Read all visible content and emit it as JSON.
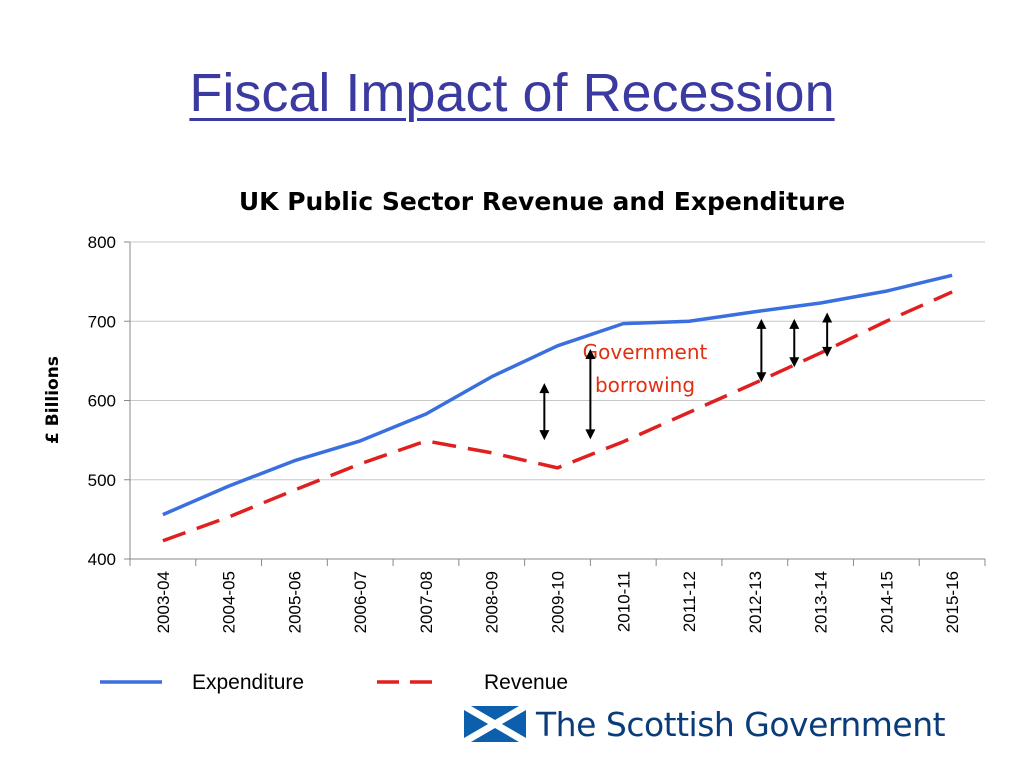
{
  "slide": {
    "title": "Fiscal Impact of Recession",
    "colors": {
      "title": "#3a3aa0",
      "logo": "#0b3c7a"
    }
  },
  "chart_data": {
    "type": "line",
    "title": "UK Public Sector Revenue and Expenditure",
    "xlabel": "",
    "ylabel": "£ Billions",
    "ylim": [
      400,
      800
    ],
    "yticks": [
      400,
      500,
      600,
      700,
      800
    ],
    "grid": true,
    "legend_position": "bottom-left",
    "categories": [
      "2003-04",
      "2004-05",
      "2005-06",
      "2006-07",
      "2007-08",
      "2008-09",
      "2009-10",
      "2010-11",
      "2011-12",
      "2012-13",
      "2013-14",
      "2014-15",
      "2015-16"
    ],
    "series": [
      {
        "name": "Expenditure",
        "color": "#3a6fe0",
        "style": "solid",
        "values": [
          456,
          492,
          524,
          549,
          583,
          630,
          669,
          697,
          700,
          712,
          723,
          738,
          758
        ]
      },
      {
        "name": "Revenue",
        "color": "#e02020",
        "style": "dashed",
        "values": [
          423,
          453,
          487,
          520,
          549,
          534,
          515,
          548,
          585,
          622,
          660,
          700,
          737
        ]
      }
    ],
    "annotation": {
      "lines": [
        "Government",
        "borrowing"
      ],
      "color": "#e03010",
      "arrows": [
        {
          "x": 5.8,
          "from": 550,
          "to": 622
        },
        {
          "x": 6.5,
          "from": 551,
          "to": 665
        },
        {
          "x": 9.1,
          "from": 623,
          "to": 703
        },
        {
          "x": 9.6,
          "from": 642,
          "to": 703
        },
        {
          "x": 10.1,
          "from": 655,
          "to": 711
        }
      ]
    }
  },
  "logo": {
    "text": "The Scottish Government",
    "icon": "saltire-flag-icon"
  }
}
